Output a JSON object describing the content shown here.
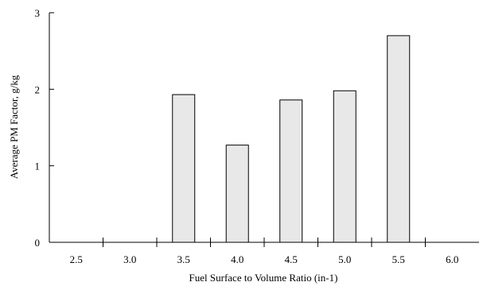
{
  "chart_data": {
    "type": "bar",
    "title": "",
    "xlabel": "Fuel Surface to Volume Ratio (in-1)",
    "ylabel": "Average PM Factor, g/kg",
    "categories": [
      "2.5",
      "3.0",
      "3.5",
      "4.0",
      "4.5",
      "5.0",
      "5.5",
      "6.0"
    ],
    "values": [
      null,
      null,
      1.93,
      1.27,
      1.86,
      1.98,
      2.7,
      null
    ],
    "ylim": [
      0,
      3
    ],
    "yticks": [
      "0",
      "1",
      "2",
      "3"
    ],
    "grid": false,
    "legend": "none",
    "colors": {
      "bar_fill": "#e8e8e8",
      "bar_stroke": "#000000",
      "axis": "#000000"
    }
  }
}
